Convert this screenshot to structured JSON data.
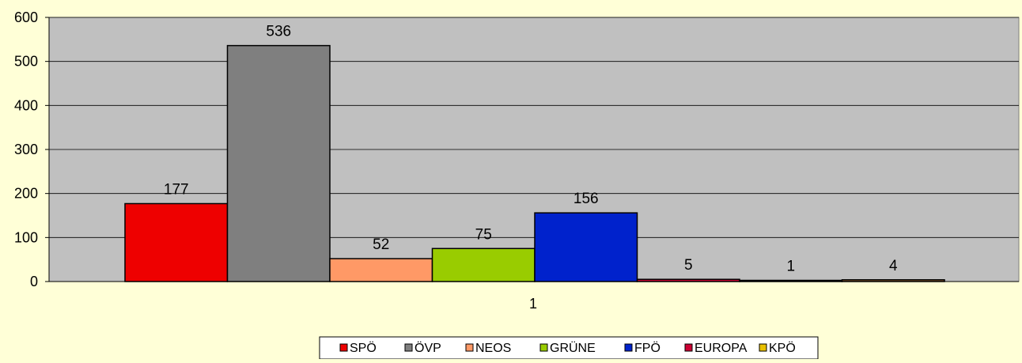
{
  "chart_data": {
    "type": "bar",
    "categories": [
      "1"
    ],
    "series": [
      {
        "name": "SPÖ",
        "values": [
          177
        ],
        "color": "#ee0000"
      },
      {
        "name": "ÖVP",
        "values": [
          536
        ],
        "color": "#7f7f7f"
      },
      {
        "name": "NEOS",
        "values": [
          52
        ],
        "color": "#ff9966"
      },
      {
        "name": "GRÜNE",
        "values": [
          75
        ],
        "color": "#99cc00"
      },
      {
        "name": "FPÖ",
        "values": [
          156
        ],
        "color": "#0022cc"
      },
      {
        "name": "EUROPA",
        "values": [
          5
        ],
        "color": "#cc0033"
      },
      {
        "name": "KPÖ",
        "values": [
          1
        ],
        "color": "#e8c000"
      },
      {
        "name": "",
        "values": [
          4
        ],
        "color": "#996633"
      }
    ],
    "data_labels": [
      "177",
      "536",
      "52",
      "75",
      "156",
      "5",
      "1",
      "4"
    ],
    "yticks": [
      "0",
      "100",
      "200",
      "300",
      "400",
      "500",
      "600"
    ],
    "ylim": [
      0,
      600
    ],
    "grid": true,
    "legend_position": "bottom-center",
    "plot_background": "#c0c0c0",
    "page_background": "#ffffd7"
  }
}
